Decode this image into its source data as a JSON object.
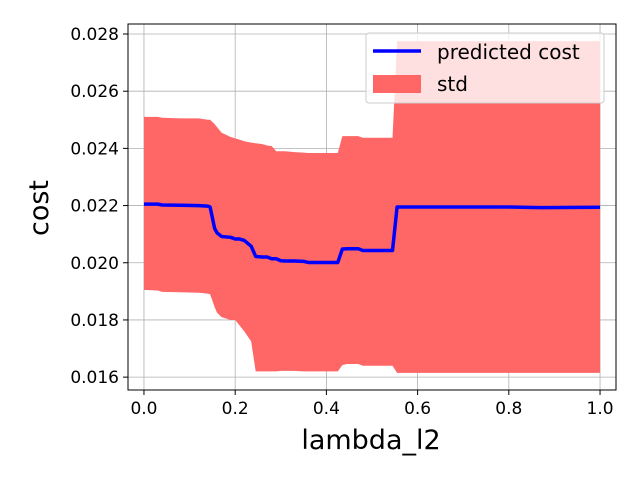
{
  "chart_data": {
    "type": "line",
    "title": "",
    "xlabel": "lambda_l2",
    "ylabel": "cost",
    "xlim": [
      -0.035,
      1.035
    ],
    "ylim": [
      0.01555,
      0.02835
    ],
    "x_ticks": [
      0.0,
      0.2,
      0.4,
      0.6,
      0.8,
      1.0
    ],
    "x_tick_labels": [
      "0.0",
      "0.2",
      "0.4",
      "0.6",
      "0.8",
      "1.0"
    ],
    "y_ticks": [
      0.016,
      0.018,
      0.02,
      0.022,
      0.024,
      0.026,
      0.028
    ],
    "y_tick_labels": [
      "0.016",
      "0.018",
      "0.020",
      "0.022",
      "0.024",
      "0.026",
      "0.028"
    ],
    "grid": true,
    "legend_position": "top-right",
    "colors": {
      "line": "#0000ff",
      "band": "#ff6666"
    },
    "series": [
      {
        "name": "predicted cost",
        "kind": "line",
        "x": [
          0.0,
          0.03,
          0.04,
          0.08,
          0.12,
          0.14,
          0.145,
          0.155,
          0.16,
          0.17,
          0.19,
          0.2,
          0.21,
          0.22,
          0.235,
          0.245,
          0.26,
          0.27,
          0.28,
          0.29,
          0.3,
          0.31,
          0.33,
          0.35,
          0.36,
          0.37,
          0.39,
          0.41,
          0.425,
          0.435,
          0.445,
          0.47,
          0.48,
          0.52,
          0.545,
          0.555,
          0.57,
          0.6,
          0.8,
          0.87,
          1.0
        ],
        "y": [
          0.02205,
          0.02205,
          0.02202,
          0.02201,
          0.022,
          0.02198,
          0.02195,
          0.0212,
          0.02105,
          0.02092,
          0.02089,
          0.02083,
          0.02083,
          0.02078,
          0.02058,
          0.02022,
          0.0202,
          0.0202,
          0.02014,
          0.02014,
          0.02007,
          0.02006,
          0.02006,
          0.02005,
          0.02001,
          0.02001,
          0.02001,
          0.02001,
          0.02001,
          0.02048,
          0.02049,
          0.02049,
          0.02043,
          0.02043,
          0.02043,
          0.02195,
          0.02195,
          0.02195,
          0.02195,
          0.02193,
          0.02194
        ]
      },
      {
        "name": "std",
        "kind": "band",
        "x": [
          0.0,
          0.03,
          0.04,
          0.08,
          0.12,
          0.14,
          0.145,
          0.155,
          0.16,
          0.17,
          0.19,
          0.2,
          0.21,
          0.22,
          0.235,
          0.245,
          0.26,
          0.27,
          0.28,
          0.29,
          0.3,
          0.31,
          0.33,
          0.35,
          0.36,
          0.37,
          0.39,
          0.41,
          0.425,
          0.435,
          0.445,
          0.47,
          0.48,
          0.52,
          0.545,
          0.555,
          0.57,
          0.6,
          0.8,
          0.87,
          1.0
        ],
        "lower": [
          0.01905,
          0.01903,
          0.01898,
          0.01897,
          0.01895,
          0.01892,
          0.0189,
          0.01845,
          0.01826,
          0.0181,
          0.018,
          0.018,
          0.0178,
          0.0176,
          0.01725,
          0.0162,
          0.0162,
          0.0162,
          0.0162,
          0.0162,
          0.01622,
          0.01622,
          0.01622,
          0.0162,
          0.0162,
          0.0162,
          0.0162,
          0.0162,
          0.0162,
          0.01642,
          0.01646,
          0.01646,
          0.0164,
          0.0164,
          0.0164,
          0.01615,
          0.01615,
          0.01615,
          0.01615,
          0.01615,
          0.01615
        ],
        "upper": [
          0.0251,
          0.0251,
          0.02507,
          0.02505,
          0.02505,
          0.025,
          0.025,
          0.02485,
          0.02475,
          0.02455,
          0.0244,
          0.02435,
          0.0243,
          0.02425,
          0.0242,
          0.02418,
          0.02415,
          0.0241,
          0.02408,
          0.0239,
          0.0239,
          0.0239,
          0.02387,
          0.02385,
          0.02384,
          0.02384,
          0.02384,
          0.02384,
          0.02384,
          0.02443,
          0.02443,
          0.02443,
          0.02437,
          0.02437,
          0.02437,
          0.02775,
          0.02775,
          0.02775,
          0.02775,
          0.02775,
          0.02775
        ]
      }
    ]
  }
}
